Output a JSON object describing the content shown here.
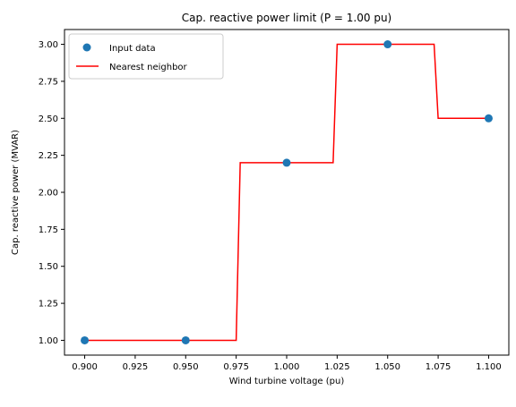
{
  "chart_data": {
    "type": "line",
    "title": "Cap. reactive power limit (P = 1.00 pu)",
    "xlabel": "Wind turbine voltage (pu)",
    "ylabel": "Cap. reactive power (MVAR)",
    "xlim": [
      0.89,
      1.11
    ],
    "ylim": [
      0.9,
      3.1
    ],
    "xticks": [
      0.9,
      0.925,
      0.95,
      0.975,
      1.0,
      1.025,
      1.05,
      1.075,
      1.1
    ],
    "xtick_labels": [
      "0.900",
      "0.925",
      "0.950",
      "0.975",
      "1.000",
      "1.025",
      "1.050",
      "1.075",
      "1.100"
    ],
    "yticks": [
      1.0,
      1.25,
      1.5,
      1.75,
      2.0,
      2.25,
      2.5,
      2.75,
      3.0
    ],
    "ytick_labels": [
      "1.00",
      "1.25",
      "1.50",
      "1.75",
      "2.00",
      "2.25",
      "2.50",
      "2.75",
      "3.00"
    ],
    "grid": false,
    "legend_position": "top-left",
    "series": [
      {
        "name": "Input data",
        "kind": "scatter",
        "color": "#1f77b4",
        "x": [
          0.9,
          0.95,
          1.0,
          1.05,
          1.1
        ],
        "y": [
          1.0,
          1.0,
          2.2,
          3.0,
          2.5
        ]
      },
      {
        "name": "Nearest neighbor",
        "kind": "line",
        "color": "#ff0000",
        "x": [
          0.9,
          0.975,
          0.977,
          1.023,
          1.025,
          1.073,
          1.075,
          1.1
        ],
        "y": [
          1.0,
          1.0,
          2.2,
          2.2,
          3.0,
          3.0,
          2.5,
          2.5
        ]
      }
    ]
  }
}
